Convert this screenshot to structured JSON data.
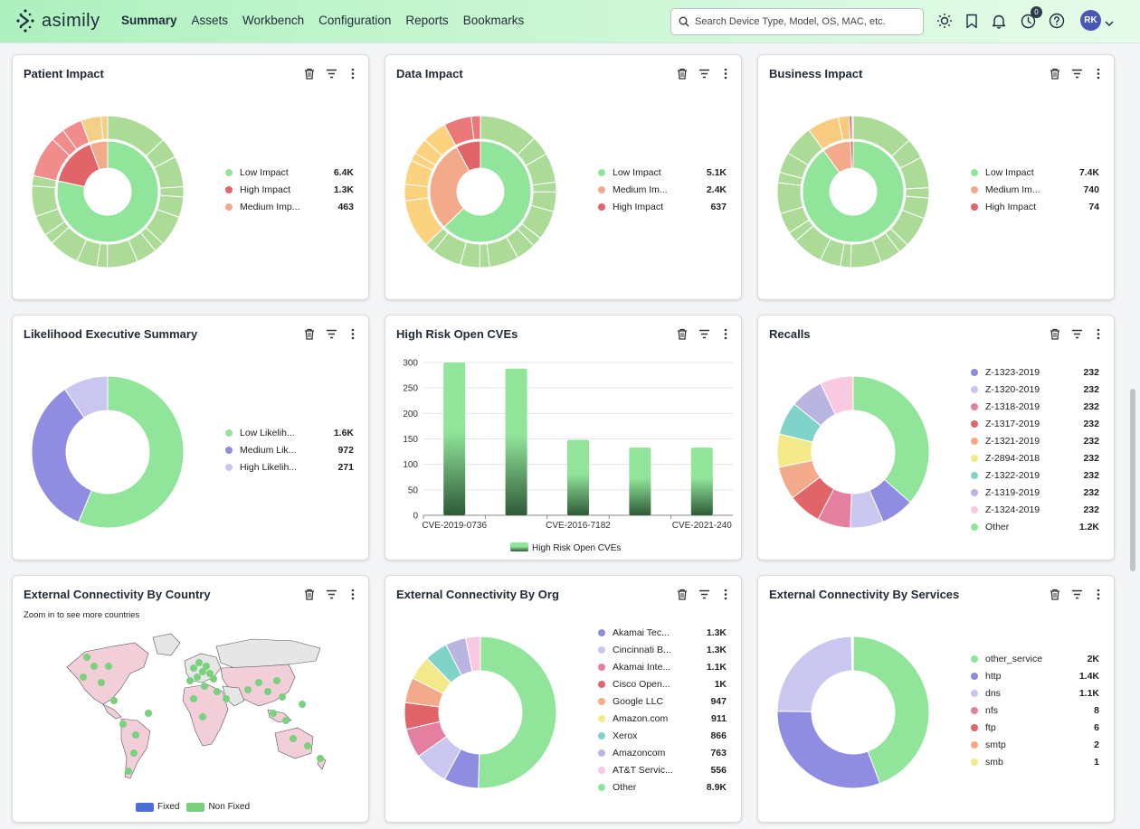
{
  "app": {
    "logo_text": "asimily",
    "nav": [
      "Summary",
      "Assets",
      "Workbench",
      "Configuration",
      "Reports",
      "Bookmarks"
    ],
    "active_nav": "Summary",
    "search_placeholder": "Search Device Type, Model, OS, MAC, etc.",
    "notification_count": "0",
    "avatar_initials": "RK",
    "icons": [
      "sun-icon",
      "bookmark-icon",
      "bell-icon",
      "notification-badge-icon",
      "help-icon",
      "chevron-down-icon"
    ]
  },
  "cards": {
    "patient": {
      "title": "Patient Impact",
      "legend": [
        {
          "label": "Low Impact",
          "value": "6.4K",
          "color": "#90e59a"
        },
        {
          "label": "High Impact",
          "value": "1.3K",
          "color": "#e06468"
        },
        {
          "label": "Medium Imp...",
          "value": "463",
          "color": "#f2aa8a"
        }
      ]
    },
    "data": {
      "title": "Data Impact",
      "legend": [
        {
          "label": "Low Impact",
          "value": "5.1K",
          "color": "#90e59a"
        },
        {
          "label": "Medium Im...",
          "value": "2.4K",
          "color": "#f2aa8a"
        },
        {
          "label": "High Impact",
          "value": "637",
          "color": "#e06468"
        }
      ]
    },
    "business": {
      "title": "Business Impact",
      "legend": [
        {
          "label": "Low Impact",
          "value": "7.4K",
          "color": "#90e59a"
        },
        {
          "label": "Medium Im...",
          "value": "740",
          "color": "#f2aa8a"
        },
        {
          "label": "High Impact",
          "value": "74",
          "color": "#e06468"
        }
      ]
    },
    "likelihood": {
      "title": "Likelihood Executive Summary",
      "legend": [
        {
          "label": "Low Likelih...",
          "value": "1.6K",
          "color": "#90e59a"
        },
        {
          "label": "Medium Lik...",
          "value": "972",
          "color": "#8f8ce2"
        },
        {
          "label": "High Likelih...",
          "value": "271",
          "color": "#c9c6ef"
        }
      ]
    },
    "cves": {
      "title": "High Risk Open CVEs",
      "legend_label": "High Risk Open CVEs"
    },
    "recalls": {
      "title": "Recalls",
      "legend": [
        {
          "label": "Z-1323-2019",
          "value": "232",
          "color": "#8f8ce2"
        },
        {
          "label": "Z-1320-2019",
          "value": "232",
          "color": "#c9c6ef"
        },
        {
          "label": "Z-1318-2019",
          "value": "232",
          "color": "#e57fa0"
        },
        {
          "label": "Z-1317-2019",
          "value": "232",
          "color": "#e06468"
        },
        {
          "label": "Z-1321-2019",
          "value": "232",
          "color": "#f2aa8a"
        },
        {
          "label": "Z-2894-2018",
          "value": "232",
          "color": "#f3e98a"
        },
        {
          "label": "Z-1322-2019",
          "value": "232",
          "color": "#7fd3c8"
        },
        {
          "label": "Z-1319-2019",
          "value": "232",
          "color": "#b9b4e0"
        },
        {
          "label": "Z-1324-2019",
          "value": "232",
          "color": "#f9c9e2"
        },
        {
          "label": "Other",
          "value": "1.2K",
          "color": "#90e59a"
        }
      ]
    },
    "country": {
      "title": "External Connectivity By Country",
      "subtitle": "Zoom in to see more countries",
      "legend": [
        {
          "label": "Fixed",
          "color": "#4a6fd6"
        },
        {
          "label": "Non Fixed",
          "color": "#79d17e"
        }
      ]
    },
    "org": {
      "title": "External Connectivity By Org",
      "legend": [
        {
          "label": "Akamai Tec...",
          "value": "1.3K",
          "color": "#8f8ce2"
        },
        {
          "label": "Cincinnati B...",
          "value": "1.3K",
          "color": "#c9c6ef"
        },
        {
          "label": "Akamai Inte...",
          "value": "1.1K",
          "color": "#e57fa0"
        },
        {
          "label": "Cisco Open...",
          "value": "1K",
          "color": "#e06468"
        },
        {
          "label": "Google LLC",
          "value": "947",
          "color": "#f2aa8a"
        },
        {
          "label": "Amazon.com",
          "value": "911",
          "color": "#f3e98a"
        },
        {
          "label": "Xerox",
          "value": "866",
          "color": "#7fd3c8"
        },
        {
          "label": "Amazoncom",
          "value": "763",
          "color": "#b9b4e0"
        },
        {
          "label": "AT&T Servic...",
          "value": "556",
          "color": "#f9c9e2"
        },
        {
          "label": "Other",
          "value": "8.9K",
          "color": "#90e59a"
        }
      ]
    },
    "services": {
      "title": "External Connectivity By Services",
      "legend": [
        {
          "label": "other_service",
          "value": "2K",
          "color": "#90e59a"
        },
        {
          "label": "http",
          "value": "1.4K",
          "color": "#8f8ce2"
        },
        {
          "label": "dns",
          "value": "1.1K",
          "color": "#c9c6ef"
        },
        {
          "label": "nfs",
          "value": "8",
          "color": "#e57fa0"
        },
        {
          "label": "ftp",
          "value": "6",
          "color": "#e06468"
        },
        {
          "label": "smtp",
          "value": "2",
          "color": "#f2aa8a"
        },
        {
          "label": "smb",
          "value": "1",
          "color": "#f3e98a"
        }
      ]
    }
  },
  "chart_data": [
    {
      "type": "pie",
      "title": "Patient Impact",
      "categories": [
        "Low Impact",
        "High Impact",
        "Medium Impact"
      ],
      "values": [
        6400,
        1300,
        463
      ]
    },
    {
      "type": "pie",
      "title": "Data Impact",
      "categories": [
        "Low Impact",
        "Medium Impact",
        "High Impact"
      ],
      "values": [
        5100,
        2400,
        637
      ]
    },
    {
      "type": "pie",
      "title": "Business Impact",
      "categories": [
        "Low Impact",
        "Medium Impact",
        "High Impact"
      ],
      "values": [
        7400,
        740,
        74
      ]
    },
    {
      "type": "pie",
      "title": "Likelihood Executive Summary",
      "categories": [
        "Low Likelihood",
        "Medium Likelihood",
        "High Likelihood"
      ],
      "values": [
        1600,
        972,
        271
      ]
    },
    {
      "type": "bar",
      "title": "High Risk Open CVEs",
      "categories": [
        "CVE-2019-0736",
        "",
        "CVE-2016-7182",
        "",
        "CVE-2021-240"
      ],
      "values": [
        300,
        288,
        148,
        133,
        133
      ],
      "ylim": [
        0,
        300
      ],
      "yticks": [
        0,
        50,
        100,
        150,
        200,
        250,
        300
      ],
      "series": [
        {
          "name": "High Risk Open CVEs",
          "values": [
            300,
            288,
            148,
            133,
            133
          ]
        }
      ]
    },
    {
      "type": "pie",
      "title": "Recalls",
      "categories": [
        "Z-1323-2019",
        "Z-1320-2019",
        "Z-1318-2019",
        "Z-1317-2019",
        "Z-1321-2019",
        "Z-2894-2018",
        "Z-1322-2019",
        "Z-1319-2019",
        "Z-1324-2019",
        "Other"
      ],
      "values": [
        232,
        232,
        232,
        232,
        232,
        232,
        232,
        232,
        232,
        1200
      ]
    },
    {
      "type": "pie",
      "title": "External Connectivity By Org",
      "categories": [
        "Akamai Tec...",
        "Cincinnati B...",
        "Akamai Inte...",
        "Cisco Open...",
        "Google LLC",
        "Amazon.com",
        "Xerox",
        "Amazoncom",
        "AT&T Servic...",
        "Other"
      ],
      "values": [
        1300,
        1300,
        1100,
        1000,
        947,
        911,
        866,
        763,
        556,
        8900
      ]
    },
    {
      "type": "pie",
      "title": "External Connectivity By Services",
      "categories": [
        "other_service",
        "http",
        "dns",
        "nfs",
        "ftp",
        "smtp",
        "smb"
      ],
      "values": [
        2000,
        1400,
        1100,
        8,
        6,
        2,
        1
      ]
    }
  ]
}
